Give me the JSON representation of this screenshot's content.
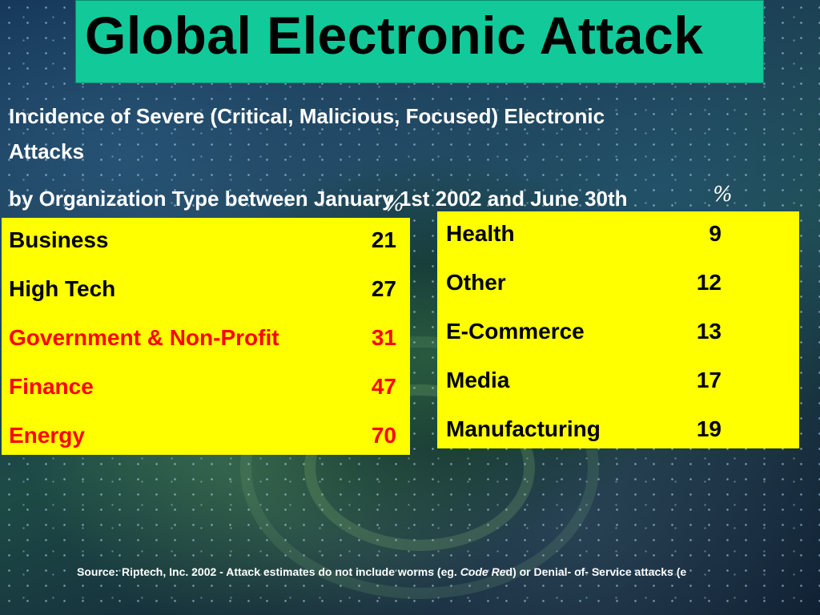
{
  "title": "Global Electronic Attack",
  "subtitle_line1": "Incidence of Severe (Critical, Malicious, Focused) Electronic",
  "subtitle_line2": "Attacks",
  "subtitle_line3": "by Organization Type between January 1st 2002 and June 30th",
  "percent_symbol": "%",
  "colors": {
    "title_bg": "#12c99a",
    "panel_bg": "#ffff00",
    "highlight_text": "#ff0000",
    "normal_text": "#000000"
  },
  "left_panel": [
    {
      "label": "Business",
      "value": "21",
      "highlight": false
    },
    {
      "label": "High Tech",
      "value": "27",
      "highlight": false
    },
    {
      "label": "Government & Non-Profit",
      "value": "31",
      "highlight": true
    },
    {
      "label": "Finance",
      "value": "47",
      "highlight": true
    },
    {
      "label": "Energy",
      "value": "70",
      "highlight": true
    }
  ],
  "right_panel": [
    {
      "label": "Health",
      "value": "9"
    },
    {
      "label": "Other",
      "value": "12"
    },
    {
      "label": "E-Commerce",
      "value": "13"
    },
    {
      "label": "Media",
      "value": "17"
    },
    {
      "label": "Manufacturing",
      "value": "19"
    }
  ],
  "source": {
    "prefix": "Source: Riptech, Inc. 2002 - Attack estimates do not include worms (eg. ",
    "italic": "Code Re",
    "suffix": "d) or Denial- of- Service attacks (e"
  }
}
